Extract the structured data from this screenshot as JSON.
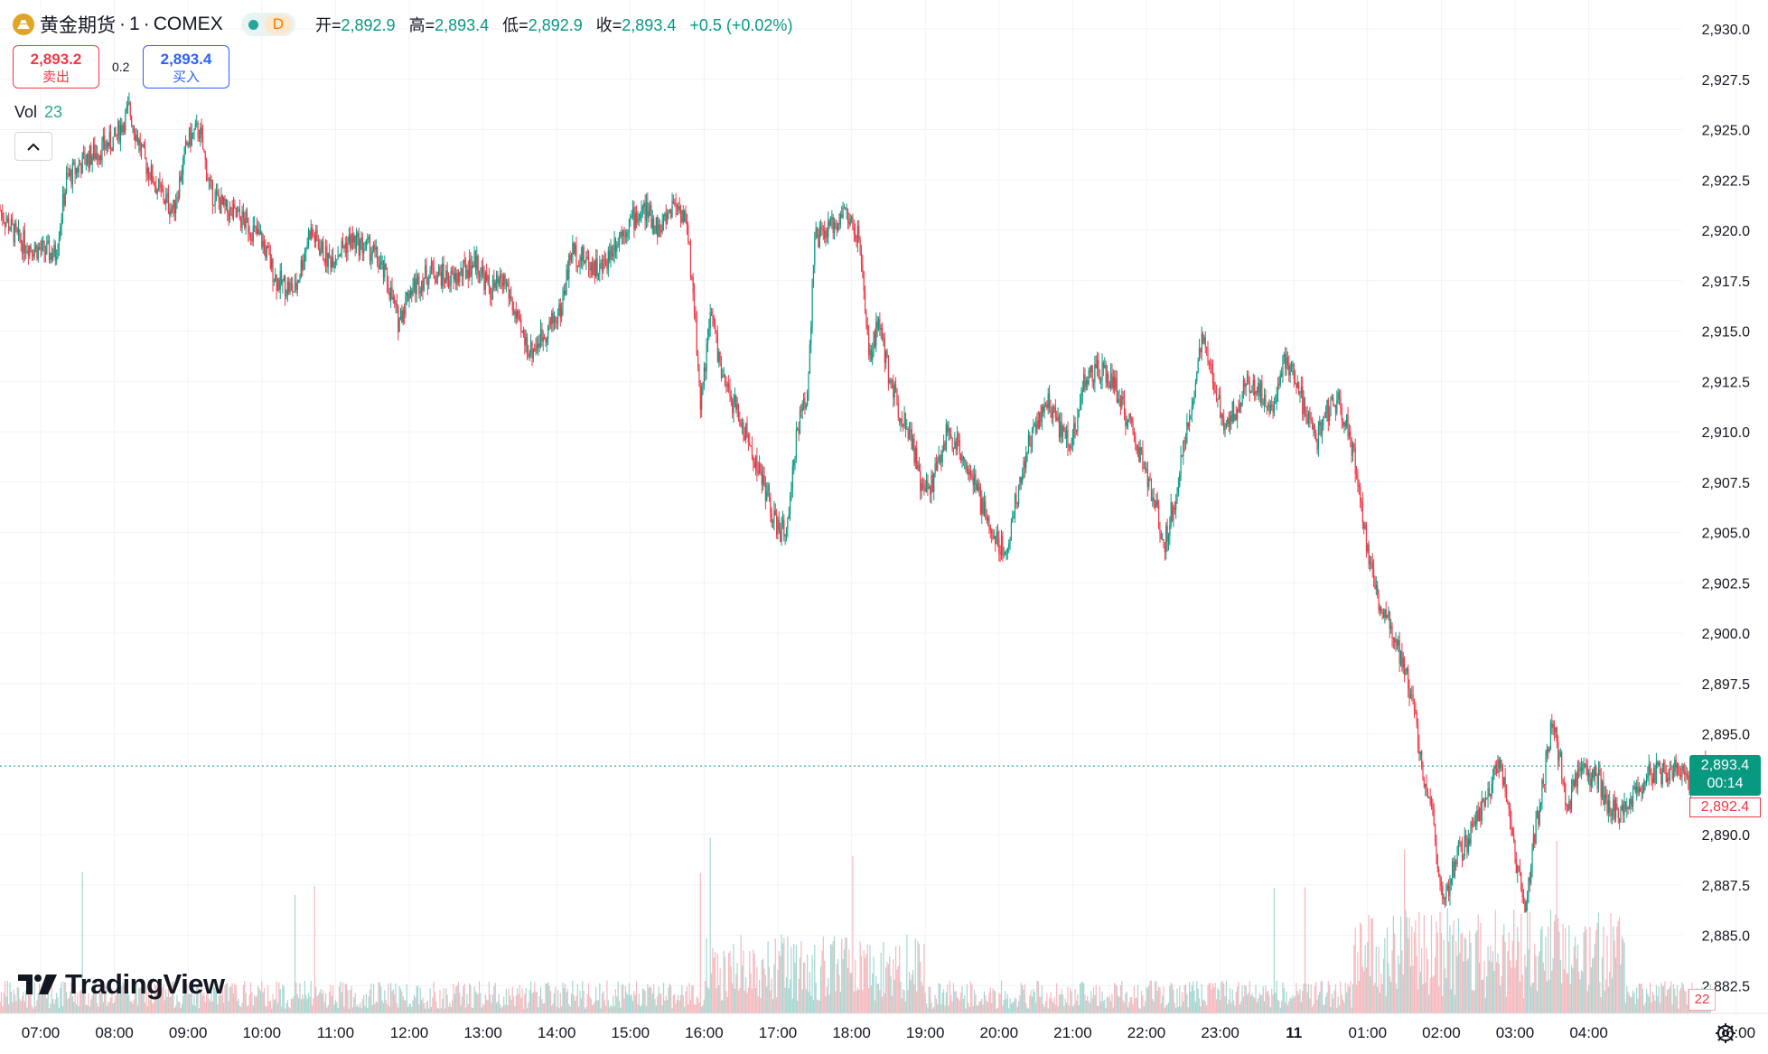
{
  "header": {
    "symbol": "黄金期货",
    "interval": "1",
    "exchange": "COMEX",
    "title_separator": "·",
    "timeframe_badge": "D",
    "ohlc": [
      {
        "key": "开=",
        "value": "2,892.9"
      },
      {
        "key": "高=",
        "value": "2,893.4"
      },
      {
        "key": "低=",
        "value": "2,892.9"
      },
      {
        "key": "收=",
        "value": "2,893.4"
      }
    ],
    "change": "+0.5 (+0.02%)"
  },
  "trade": {
    "sell_price": "2,893.2",
    "sell_label": "卖出",
    "spread": "0.2",
    "buy_price": "2,893.4",
    "buy_label": "买入"
  },
  "volume_legend": {
    "label": "Vol",
    "value": "23"
  },
  "branding": {
    "name": "TradingView"
  },
  "price_tags": {
    "last_price": "2,893.4",
    "countdown": "00:14",
    "bid_price": "2,892.4",
    "last_volume": "22"
  },
  "colors": {
    "up": "#089981",
    "down": "#f23645",
    "up_vol": "#a5d6d0",
    "down_vol": "#f7b8bd",
    "grid": "#f0f3fa",
    "axis_text": "#131722"
  },
  "chart_data": {
    "type": "candlestick",
    "y_axis": {
      "min": 2881.0,
      "max": 2931.5,
      "tick_labels": [
        "2,930.0",
        "2,927.5",
        "2,925.0",
        "2,922.5",
        "2,920.0",
        "2,917.5",
        "2,915.0",
        "2,912.5",
        "2,910.0",
        "2,907.5",
        "2,905.0",
        "2,902.5",
        "2,900.0",
        "2,897.5",
        "2,895.0",
        "2,890.0",
        "2,887.5",
        "2,885.0",
        "2,882.5"
      ],
      "tick_values": [
        2930.0,
        2927.5,
        2925.0,
        2922.5,
        2920.0,
        2917.5,
        2915.0,
        2912.5,
        2910.0,
        2907.5,
        2905.0,
        2902.5,
        2900.0,
        2897.5,
        2895.0,
        2890.0,
        2887.5,
        2885.0,
        2882.5
      ]
    },
    "x_axis": {
      "tick_labels": [
        "07:00",
        "08:00",
        "09:00",
        "10:00",
        "11:00",
        "12:00",
        "13:00",
        "14:00",
        "15:00",
        "16:00",
        "17:00",
        "18:00",
        "19:00",
        "20:00",
        "21:00",
        "22:00",
        "23:00",
        "11",
        "01:00",
        "02:00",
        "03:00",
        "04:00",
        "06:00"
      ],
      "tick_hours": [
        0,
        1,
        2,
        3,
        4,
        5,
        6,
        7,
        8,
        9,
        10,
        11,
        12,
        13,
        14,
        15,
        16,
        17,
        18,
        19,
        20,
        21,
        23
      ],
      "range_hours": [
        -0.55,
        23.4
      ]
    },
    "last_price": 2893.4,
    "price_path": [
      {
        "t": -0.55,
        "p": 2921.0
      },
      {
        "t": -0.3,
        "p": 2919.5
      },
      {
        "t": 0.0,
        "p": 2919.0
      },
      {
        "t": 0.2,
        "p": 2918.8
      },
      {
        "t": 0.35,
        "p": 2922.5
      },
      {
        "t": 0.6,
        "p": 2923.5
      },
      {
        "t": 0.8,
        "p": 2924.0
      },
      {
        "t": 1.0,
        "p": 2924.5
      },
      {
        "t": 1.2,
        "p": 2926.0
      },
      {
        "t": 1.4,
        "p": 2923.5
      },
      {
        "t": 1.6,
        "p": 2922.0
      },
      {
        "t": 1.8,
        "p": 2921.0
      },
      {
        "t": 2.0,
        "p": 2924.5
      },
      {
        "t": 2.15,
        "p": 2925.0
      },
      {
        "t": 2.3,
        "p": 2922.0
      },
      {
        "t": 2.5,
        "p": 2921.0
      },
      {
        "t": 2.75,
        "p": 2920.5
      },
      {
        "t": 3.0,
        "p": 2919.5
      },
      {
        "t": 3.2,
        "p": 2917.5
      },
      {
        "t": 3.45,
        "p": 2917.0
      },
      {
        "t": 3.65,
        "p": 2920.0
      },
      {
        "t": 3.9,
        "p": 2918.5
      },
      {
        "t": 4.2,
        "p": 2919.5
      },
      {
        "t": 4.5,
        "p": 2919.0
      },
      {
        "t": 4.7,
        "p": 2917.5
      },
      {
        "t": 4.85,
        "p": 2915.5
      },
      {
        "t": 5.0,
        "p": 2917.0
      },
      {
        "t": 5.3,
        "p": 2918.0
      },
      {
        "t": 5.6,
        "p": 2917.5
      },
      {
        "t": 5.9,
        "p": 2918.5
      },
      {
        "t": 6.1,
        "p": 2917.0
      },
      {
        "t": 6.3,
        "p": 2917.5
      },
      {
        "t": 6.5,
        "p": 2915.0
      },
      {
        "t": 6.65,
        "p": 2914.0
      },
      {
        "t": 6.85,
        "p": 2915.0
      },
      {
        "t": 7.05,
        "p": 2916.0
      },
      {
        "t": 7.2,
        "p": 2919.0
      },
      {
        "t": 7.4,
        "p": 2918.5
      },
      {
        "t": 7.6,
        "p": 2918.0
      },
      {
        "t": 7.8,
        "p": 2919.5
      },
      {
        "t": 8.0,
        "p": 2920.5
      },
      {
        "t": 8.2,
        "p": 2921.0
      },
      {
        "t": 8.4,
        "p": 2920.0
      },
      {
        "t": 8.6,
        "p": 2921.5
      },
      {
        "t": 8.75,
        "p": 2920.5
      },
      {
        "t": 8.85,
        "p": 2917.0
      },
      {
        "t": 8.95,
        "p": 2911.5
      },
      {
        "t": 9.1,
        "p": 2916.0
      },
      {
        "t": 9.25,
        "p": 2912.5
      },
      {
        "t": 9.45,
        "p": 2911.0
      },
      {
        "t": 9.65,
        "p": 2909.0
      },
      {
        "t": 9.85,
        "p": 2907.0
      },
      {
        "t": 9.95,
        "p": 2905.5
      },
      {
        "t": 10.05,
        "p": 2905.0
      },
      {
        "t": 10.15,
        "p": 2905.5
      },
      {
        "t": 10.25,
        "p": 2910.0
      },
      {
        "t": 10.4,
        "p": 2912.0
      },
      {
        "t": 10.5,
        "p": 2919.5
      },
      {
        "t": 10.7,
        "p": 2920.0
      },
      {
        "t": 10.9,
        "p": 2921.0
      },
      {
        "t": 11.1,
        "p": 2919.5
      },
      {
        "t": 11.25,
        "p": 2913.5
      },
      {
        "t": 11.35,
        "p": 2915.5
      },
      {
        "t": 11.5,
        "p": 2913.0
      },
      {
        "t": 11.65,
        "p": 2911.0
      },
      {
        "t": 11.8,
        "p": 2910.0
      },
      {
        "t": 11.95,
        "p": 2907.0
      },
      {
        "t": 12.1,
        "p": 2907.5
      },
      {
        "t": 12.3,
        "p": 2910.0
      },
      {
        "t": 12.5,
        "p": 2909.0
      },
      {
        "t": 12.7,
        "p": 2907.0
      },
      {
        "t": 12.9,
        "p": 2905.0
      },
      {
        "t": 13.1,
        "p": 2904.0
      },
      {
        "t": 13.25,
        "p": 2907.0
      },
      {
        "t": 13.45,
        "p": 2910.0
      },
      {
        "t": 13.65,
        "p": 2911.5
      },
      {
        "t": 13.85,
        "p": 2910.0
      },
      {
        "t": 14.0,
        "p": 2909.5
      },
      {
        "t": 14.15,
        "p": 2912.5
      },
      {
        "t": 14.35,
        "p": 2913.0
      },
      {
        "t": 14.55,
        "p": 2912.5
      },
      {
        "t": 14.75,
        "p": 2910.5
      },
      {
        "t": 14.95,
        "p": 2908.5
      },
      {
        "t": 15.1,
        "p": 2906.5
      },
      {
        "t": 15.25,
        "p": 2904.5
      },
      {
        "t": 15.4,
        "p": 2907.0
      },
      {
        "t": 15.55,
        "p": 2910.0
      },
      {
        "t": 15.75,
        "p": 2914.5
      },
      {
        "t": 15.95,
        "p": 2912.0
      },
      {
        "t": 16.05,
        "p": 2910.5
      },
      {
        "t": 16.2,
        "p": 2911.0
      },
      {
        "t": 16.35,
        "p": 2912.5
      },
      {
        "t": 16.55,
        "p": 2912.0
      },
      {
        "t": 16.7,
        "p": 2911.0
      },
      {
        "t": 16.85,
        "p": 2913.5
      },
      {
        "t": 17.0,
        "p": 2913.0
      },
      {
        "t": 17.15,
        "p": 2911.0
      },
      {
        "t": 17.3,
        "p": 2909.5
      },
      {
        "t": 17.45,
        "p": 2911.0
      },
      {
        "t": 17.6,
        "p": 2911.5
      },
      {
        "t": 17.75,
        "p": 2910.0
      },
      {
        "t": 17.9,
        "p": 2907.0
      },
      {
        "t": 18.0,
        "p": 2904.0
      },
      {
        "t": 18.1,
        "p": 2902.0
      },
      {
        "t": 18.25,
        "p": 2901.0
      },
      {
        "t": 18.4,
        "p": 2899.5
      },
      {
        "t": 18.55,
        "p": 2897.5
      },
      {
        "t": 18.65,
        "p": 2896.0
      },
      {
        "t": 18.75,
        "p": 2893.0
      },
      {
        "t": 18.85,
        "p": 2892.0
      },
      {
        "t": 18.95,
        "p": 2888.0
      },
      {
        "t": 19.05,
        "p": 2886.5
      },
      {
        "t": 19.2,
        "p": 2889.0
      },
      {
        "t": 19.35,
        "p": 2889.5
      },
      {
        "t": 19.5,
        "p": 2891.0
      },
      {
        "t": 19.65,
        "p": 2892.0
      },
      {
        "t": 19.8,
        "p": 2894.0
      },
      {
        "t": 19.9,
        "p": 2891.0
      },
      {
        "t": 20.05,
        "p": 2888.0
      },
      {
        "t": 20.15,
        "p": 2886.5
      },
      {
        "t": 20.25,
        "p": 2889.5
      },
      {
        "t": 20.4,
        "p": 2893.0
      },
      {
        "t": 20.5,
        "p": 2895.5
      },
      {
        "t": 20.6,
        "p": 2894.0
      },
      {
        "t": 20.7,
        "p": 2891.0
      },
      {
        "t": 20.8,
        "p": 2892.5
      },
      {
        "t": 20.95,
        "p": 2893.0
      },
      {
        "t": 21.1,
        "p": 2893.0
      },
      {
        "t": 21.25,
        "p": 2891.5
      },
      {
        "t": 21.4,
        "p": 2891.0
      },
      {
        "t": 21.6,
        "p": 2892.0
      },
      {
        "t": 21.8,
        "p": 2893.0
      },
      {
        "t": 22.0,
        "p": 2893.0
      },
      {
        "t": 22.2,
        "p": 2893.5
      },
      {
        "t": 22.35,
        "p": 2892.5
      },
      {
        "t": 22.5,
        "p": 2893.0
      },
      {
        "t": 22.65,
        "p": 2893.4
      }
    ],
    "volume_scale": {
      "max": 230
    }
  }
}
